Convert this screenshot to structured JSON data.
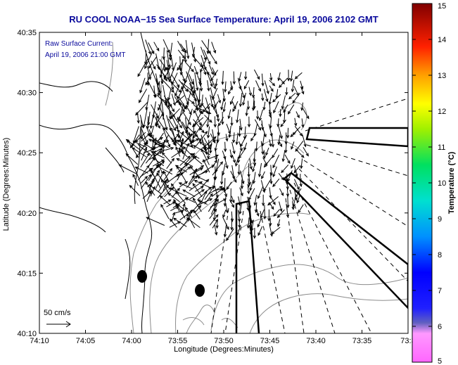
{
  "title": "RU COOL  NOAA−15  Sea Surface Temperature:  April 19, 2006 2102 GMT",
  "inset": {
    "line1": "Raw Surface Current:",
    "line2": "April 19, 2006 21:00 GMT"
  },
  "scale_label": "50 cm/s",
  "xlabel": "Longitude (Degrees:Minutes)",
  "ylabel": "Latitude (Degrees:Minutes)",
  "xticks": [
    "74:10",
    "74:05",
    "74:00",
    "73:55",
    "73:50",
    "73:45",
    "73:40",
    "73:35",
    "73:3"
  ],
  "yticks": [
    "40:35",
    "40:30",
    "40:25",
    "40:20",
    "40:15",
    "40:10"
  ],
  "colorbar": {
    "label": "Temperature (°C)",
    "ticks": [
      "15",
      "14",
      "13",
      "12",
      "11",
      "10",
      "9",
      "8",
      "7",
      "6",
      "5"
    ],
    "range": [
      5,
      15
    ]
  },
  "map_extent": {
    "lon": [
      -74.1667,
      -73.5
    ],
    "lat": [
      40.1667,
      40.5833
    ]
  },
  "colors": {
    "title": "#0a0a9c",
    "land": "#000000",
    "bathymetry": "#8c8c8c",
    "frame": "#000000"
  },
  "markers": [
    {
      "lon": -73.98,
      "lat": 40.245
    },
    {
      "lon": -73.935,
      "lat": 40.228
    }
  ]
}
